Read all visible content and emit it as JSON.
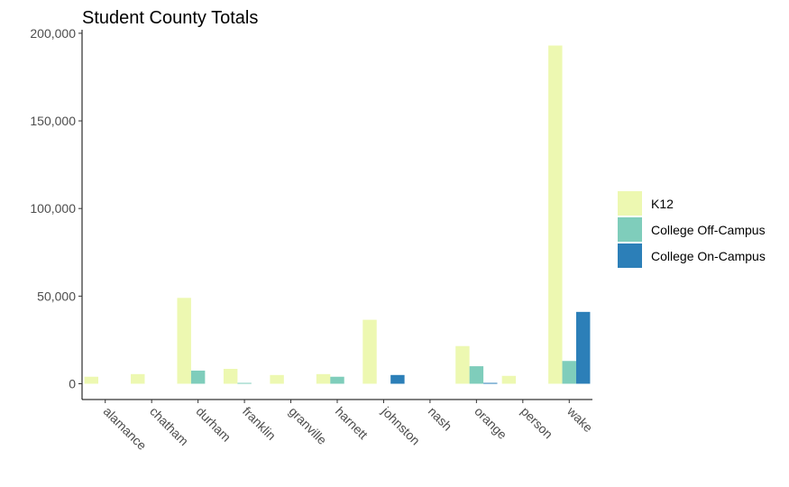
{
  "chart_data": {
    "type": "bar",
    "title": "Student County Totals",
    "xlabel": "",
    "ylabel": "",
    "categories": [
      "alamance",
      "chatham",
      "durham",
      "franklin",
      "granville",
      "harnett",
      "johnston",
      "nash",
      "orange",
      "person",
      "wake"
    ],
    "series": [
      {
        "name": "K12",
        "color": "#edf8b1",
        "values": [
          4000,
          5500,
          49000,
          8500,
          5000,
          5500,
          36500,
          0,
          21500,
          4500,
          193000
        ]
      },
      {
        "name": "College Off-Campus",
        "color": "#7fcdbb",
        "values": [
          0,
          0,
          7500,
          500,
          0,
          4000,
          0,
          0,
          10000,
          0,
          13000
        ]
      },
      {
        "name": "College On-Campus",
        "color": "#2c7fb8",
        "values": [
          0,
          0,
          0,
          0,
          0,
          0,
          5000,
          0,
          500,
          0,
          41000
        ]
      }
    ],
    "yticks": [
      0,
      50000,
      100000,
      150000,
      200000
    ],
    "ytick_labels": [
      "0",
      "50,000",
      "100,000",
      "150,000",
      "200,000"
    ],
    "ylim": [
      -9000,
      202000
    ],
    "grid": false,
    "legend_position": "right"
  }
}
